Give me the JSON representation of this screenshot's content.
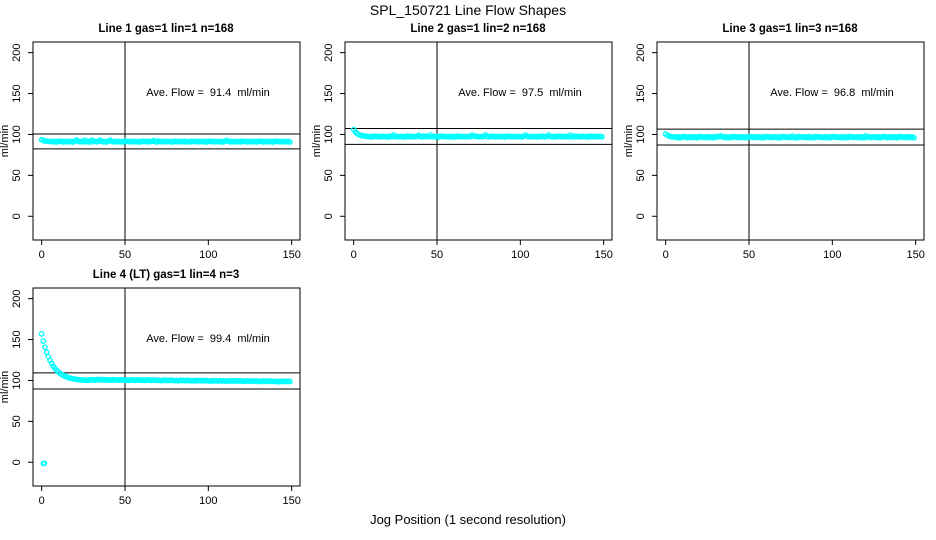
{
  "title": "SPL_150721  Line Flow Shapes",
  "xlabel": "Jog Position (1 second resolution)",
  "ylabel": "ml/min",
  "colors": {
    "points": "#00FFFF",
    "axis": "#000000",
    "background": "#FFFFFF"
  },
  "chart_data": {
    "type": "scatter",
    "marker": "open-circle",
    "grid": "off",
    "layout": "4 panels: three across top row, one at bottom-left",
    "x_ticks": [
      0,
      50,
      100,
      150
    ],
    "y_ticks": [
      0,
      50,
      100,
      150,
      200
    ],
    "xlim": [
      -5.2,
      155
    ],
    "ylim": [
      -29,
      213
    ],
    "vline_x": 50,
    "panels": [
      {
        "title": "Line 1 gas=1 lin=1 n=168",
        "annotation": "Ave. Flow =  91.4  ml/min",
        "ave_flow": 91.4,
        "hline_upper": 100.5,
        "hline_lower": 82.3,
        "x_start": 0,
        "x_step": 1,
        "y": [
          93.6,
          92.6,
          92.0,
          91.7,
          91.5,
          91.4,
          91.6,
          91.0,
          91.4,
          90.8,
          91.9,
          91.3,
          91.7,
          90.9,
          91.5,
          91.1,
          91.6,
          91.0,
          91.4,
          90.8,
          91.9,
          93.2,
          91.7,
          90.9,
          91.5,
          91.1,
          93.0,
          91.0,
          91.4,
          90.8,
          92.9,
          91.3,
          91.7,
          90.9,
          91.5,
          93.1,
          91.6,
          91.0,
          91.4,
          90.8,
          91.9,
          92.8,
          91.7,
          90.9,
          91.5,
          91.1,
          91.6,
          91.0,
          91.4,
          90.8,
          91.9,
          91.3,
          91.7,
          90.9,
          91.5,
          91.1,
          91.6,
          91.0,
          91.4,
          90.8,
          91.9,
          91.3,
          91.7,
          90.9,
          91.5,
          91.1,
          91.6,
          92.7,
          91.4,
          90.8,
          91.9,
          91.3,
          91.7,
          90.9,
          91.5,
          91.1,
          91.6,
          91.0,
          91.4,
          90.8,
          91.9,
          91.3,
          91.7,
          90.9,
          91.5,
          91.1,
          91.6,
          91.0,
          91.4,
          90.8,
          91.9,
          91.3,
          91.7,
          90.9,
          91.5,
          91.1,
          91.6,
          91.0,
          91.4,
          90.8,
          91.9,
          91.3,
          91.7,
          90.9,
          91.5,
          91.1,
          91.6,
          91.0,
          91.4,
          90.8,
          91.9,
          92.6,
          91.7,
          90.9,
          91.5,
          91.1,
          91.6,
          91.0,
          91.4,
          90.8,
          91.9,
          91.3,
          91.7,
          90.9,
          91.5,
          91.1,
          91.6,
          91.0,
          91.4,
          90.8,
          91.9,
          91.3,
          91.7,
          90.9,
          91.5,
          91.1,
          91.6,
          91.0,
          91.4,
          90.8,
          91.9,
          91.3,
          91.7,
          90.9,
          91.5,
          91.1,
          91.6,
          91.0,
          91.4,
          90.8
        ]
      },
      {
        "title": "Line 2 gas=1 lin=2 n=168",
        "annotation": "Ave. Flow =  97.5  ml/min",
        "ave_flow": 97.5,
        "hline_upper": 107.3,
        "hline_lower": 87.8,
        "x_start": 0,
        "x_step": 1,
        "y": [
          106.0,
          103.1,
          101.2,
          99.9,
          99.1,
          98.5,
          98.1,
          97.8,
          97.7,
          97.1,
          97.5,
          96.9,
          98.0,
          97.4,
          97.8,
          97.0,
          97.6,
          97.2,
          97.7,
          97.1,
          97.5,
          96.9,
          98.0,
          97.4,
          99.3,
          97.0,
          97.6,
          97.2,
          97.7,
          97.1,
          97.5,
          96.9,
          98.0,
          97.4,
          97.8,
          97.0,
          97.6,
          97.2,
          97.7,
          99.1,
          97.5,
          96.9,
          98.0,
          97.4,
          97.8,
          97.0,
          99.2,
          97.2,
          97.7,
          97.1,
          97.5,
          96.9,
          98.0,
          97.4,
          97.8,
          97.0,
          97.6,
          97.2,
          97.7,
          97.1,
          97.5,
          96.9,
          98.0,
          97.4,
          97.8,
          97.0,
          97.6,
          97.2,
          97.7,
          97.1,
          97.5,
          99.0,
          98.0,
          97.4,
          97.8,
          97.0,
          97.6,
          97.2,
          97.7,
          99.3,
          97.5,
          96.9,
          98.0,
          97.4,
          97.8,
          97.0,
          97.6,
          97.2,
          97.7,
          97.1,
          97.5,
          96.9,
          98.0,
          97.4,
          97.8,
          97.0,
          97.6,
          97.2,
          97.7,
          97.1,
          97.5,
          96.9,
          98.0,
          99.1,
          97.8,
          97.0,
          97.6,
          97.2,
          97.7,
          97.1,
          97.5,
          96.9,
          98.0,
          97.4,
          97.8,
          97.0,
          97.6,
          99.2,
          97.7,
          97.1,
          97.5,
          96.9,
          98.0,
          97.4,
          97.8,
          97.0,
          97.6,
          97.2,
          97.7,
          97.1,
          99.0,
          96.9,
          98.0,
          97.4,
          97.8,
          97.0,
          97.6,
          97.2,
          97.7,
          97.1,
          97.5,
          96.9,
          98.0,
          97.4,
          97.8,
          97.0,
          97.6,
          97.2,
          97.7,
          97.1
        ]
      },
      {
        "title": "Line 3 gas=1 lin=3 n=168",
        "annotation": "Ave. Flow =  96.8  ml/min",
        "ave_flow": 96.8,
        "hline_upper": 106.5,
        "hline_lower": 87.1,
        "x_start": 0,
        "x_step": 1,
        "y": [
          100.6,
          99.1,
          98.1,
          97.4,
          97.0,
          96.8,
          97.4,
          96.0,
          96.9,
          95.9,
          97.5,
          96.7,
          97.2,
          96.1,
          97.0,
          96.3,
          97.4,
          96.0,
          96.9,
          95.9,
          97.5,
          96.7,
          97.2,
          96.1,
          97.0,
          96.3,
          97.4,
          96.0,
          96.9,
          95.9,
          97.5,
          96.7,
          97.2,
          98.3,
          97.0,
          96.3,
          97.4,
          96.0,
          96.9,
          95.9,
          97.5,
          96.7,
          97.2,
          96.1,
          97.0,
          96.3,
          97.4,
          96.0,
          96.9,
          95.9,
          97.5,
          96.7,
          97.2,
          96.1,
          97.0,
          96.3,
          97.4,
          96.0,
          96.9,
          95.9,
          97.5,
          96.7,
          97.2,
          96.1,
          97.0,
          96.3,
          97.4,
          96.0,
          96.9,
          95.9,
          97.5,
          96.7,
          97.2,
          96.1,
          97.0,
          96.3,
          98.1,
          96.0,
          96.9,
          95.9,
          97.5,
          96.7,
          97.2,
          96.1,
          97.0,
          96.3,
          97.4,
          96.0,
          96.9,
          95.9,
          97.5,
          96.7,
          97.2,
          96.1,
          97.0,
          96.3,
          97.4,
          96.0,
          96.9,
          95.9,
          97.5,
          96.7,
          97.2,
          96.1,
          97.0,
          96.3,
          97.4,
          96.0,
          96.9,
          95.9,
          97.5,
          96.7,
          97.2,
          96.1,
          97.0,
          96.3,
          97.4,
          96.0,
          96.9,
          95.9,
          98.2,
          96.7,
          97.2,
          96.1,
          97.0,
          96.3,
          97.4,
          96.0,
          96.9,
          95.9,
          97.5,
          96.7,
          97.2,
          96.1,
          97.0,
          96.3,
          97.4,
          96.0,
          96.9,
          95.9,
          97.5,
          96.7,
          97.2,
          96.1,
          97.0,
          96.3,
          97.4,
          96.0,
          96.9,
          95.9
        ]
      },
      {
        "title": "Line 4 (LT) gas=1 lin=4 n=3",
        "annotation": "Ave. Flow =  99.4  ml/min",
        "ave_flow": 99.4,
        "hline_upper": 109.3,
        "hline_lower": 89.5,
        "x_start": 0,
        "x_step": 1,
        "extra_points": [
          [
            1.0,
            -1.5
          ],
          [
            1.6,
            -1.2
          ]
        ],
        "y": [
          157.0,
          148.1,
          140.7,
          134.4,
          129.0,
          124.5,
          120.7,
          117.4,
          114.7,
          112.3,
          110.4,
          108.7,
          107.3,
          106.1,
          105.1,
          104.2,
          103.5,
          102.9,
          102.4,
          101.9,
          101.6,
          101.3,
          101.0,
          100.8,
          100.6,
          100.4,
          100.3,
          100.2,
          100.1,
          101.1,
          100.6,
          100.9,
          100.4,
          101.2,
          100.8,
          101.0,
          100.5,
          101.1,
          100.7,
          100.9,
          100.4,
          100.7,
          100.2,
          101.0,
          100.6,
          100.8,
          100.3,
          100.9,
          100.5,
          100.7,
          100.2,
          100.5,
          100.0,
          100.8,
          100.4,
          100.6,
          100.1,
          100.7,
          100.3,
          100.6,
          100.1,
          100.4,
          99.9,
          100.7,
          100.3,
          100.5,
          100.0,
          100.6,
          100.2,
          100.4,
          99.9,
          100.2,
          99.7,
          100.5,
          100.1,
          100.3,
          99.8,
          100.4,
          100.0,
          100.2,
          99.7,
          100.0,
          99.5,
          100.3,
          99.9,
          100.1,
          99.6,
          100.2,
          99.8,
          100.0,
          99.5,
          99.8,
          99.3,
          100.1,
          99.7,
          99.9,
          99.4,
          100.0,
          99.6,
          99.8,
          99.3,
          99.6,
          99.1,
          99.9,
          99.5,
          99.7,
          99.2,
          99.8,
          99.4,
          99.7,
          99.2,
          99.5,
          99.0,
          99.8,
          99.4,
          99.6,
          99.1,
          99.7,
          99.3,
          99.5,
          99.0,
          99.3,
          98.8,
          99.6,
          99.2,
          99.4,
          98.9,
          99.5,
          99.1,
          99.3,
          98.8,
          99.1,
          98.6,
          99.4,
          99.0,
          99.2,
          98.7,
          99.3,
          98.9,
          99.1,
          98.6,
          98.9,
          98.4,
          99.2,
          98.8,
          99.0,
          98.5,
          99.1,
          98.7,
          98.9
        ]
      }
    ]
  }
}
